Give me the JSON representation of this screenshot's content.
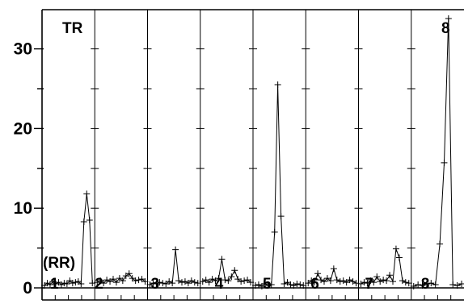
{
  "chart_data": {
    "type": "line",
    "title": "",
    "top_text": "",
    "xlabel": "",
    "ylabel": "",
    "ylim": [
      -1,
      35
    ],
    "y_ticks": [
      0,
      10,
      20,
      30
    ],
    "y_tick_labels": [
      "0",
      "10",
      "20",
      "30"
    ],
    "minor_y_step": 5,
    "grid": "vertical separators with cross-tick marks",
    "corner_labels": {
      "top_left": "TR",
      "top_right": "8",
      "bottom_left": "(RR)"
    },
    "segment_labels": [
      "1",
      "2",
      "3",
      "4",
      "5",
      "6",
      "7",
      "8"
    ],
    "segments": [
      {
        "label": "1",
        "values": [
          0.3,
          0.6,
          0.4,
          0.8,
          0.5,
          0.7,
          0.4,
          0.6,
          0.5,
          0.9,
          0.6,
          0.7,
          0.8,
          0.5,
          8.3,
          11.8,
          8.5,
          0.6
        ]
      },
      {
        "label": "2",
        "values": [
          0.7,
          0.9,
          0.6,
          1.0,
          0.8,
          1.1,
          0.7,
          1.2,
          0.9,
          1.5,
          1.8,
          1.2,
          0.9,
          1.0,
          1.1,
          0.8
        ]
      },
      {
        "label": "3",
        "values": [
          0.4,
          0.6,
          0.5,
          0.7,
          0.6,
          0.5,
          0.8,
          0.6,
          4.8,
          0.9,
          0.7,
          0.8,
          0.6,
          0.9,
          0.7,
          0.6
        ]
      },
      {
        "label": "4",
        "values": [
          0.8,
          1.0,
          0.7,
          1.1,
          0.9,
          1.2,
          3.6,
          1.0,
          0.9,
          1.4,
          2.2,
          1.1,
          0.8,
          0.9,
          1.0,
          0.7
        ]
      },
      {
        "label": "5",
        "values": [
          0.3,
          0.4,
          0.2,
          0.5,
          0.3,
          0.4,
          7.0,
          25.5,
          9.0,
          0.5,
          0.7,
          0.4,
          0.3,
          0.5,
          0.4,
          0.3
        ]
      },
      {
        "label": "6",
        "values": [
          0.6,
          0.9,
          0.7,
          1.8,
          1.0,
          0.8,
          1.2,
          0.9,
          2.4,
          1.0,
          0.8,
          0.9,
          0.7,
          1.0,
          0.8,
          0.6
        ]
      },
      {
        "label": "7",
        "values": [
          0.5,
          0.7,
          0.6,
          0.9,
          0.7,
          1.4,
          0.8,
          1.0,
          0.9,
          1.6,
          0.8,
          4.9,
          3.8,
          0.9,
          0.7,
          0.6
        ]
      },
      {
        "label": "8",
        "values": [
          0.2,
          0.4,
          0.3,
          0.5,
          0.6,
          0.4,
          5.5,
          15.7,
          33.8,
          0.4,
          0.3,
          0.5
        ]
      }
    ]
  }
}
